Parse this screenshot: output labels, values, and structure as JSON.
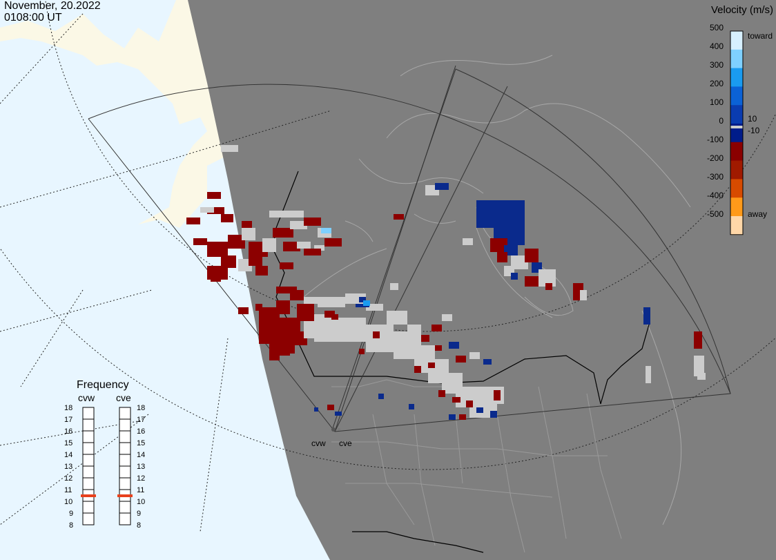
{
  "header": {
    "date": "November, 20.2022",
    "time": "0108:00 UT"
  },
  "velocity_scale": {
    "title": "Velocity (m/s)",
    "ticks": [
      "500",
      "400",
      "300",
      "200",
      "100",
      "0",
      "-100",
      "-200",
      "-300",
      "-400",
      "-500"
    ],
    "labels": {
      "toward": "toward",
      "away": "away",
      "pos_small": "10",
      "neg_small": "-10"
    },
    "colors": [
      "#d7f0ff",
      "#7fd0ff",
      "#1a9bf0",
      "#0b62d6",
      "#0a3cb0",
      "#001c8a",
      "#8a0000",
      "#a01a00",
      "#d74b00",
      "#ff9a1a",
      "#ffd7a8"
    ]
  },
  "frequency": {
    "title": "Frequency",
    "radars": [
      "cvw",
      "cve"
    ],
    "ticks": [
      "18",
      "17",
      "16",
      "15",
      "14",
      "13",
      "12",
      "11",
      "10",
      "9",
      "8"
    ],
    "current_mhz": [
      11,
      11
    ]
  },
  "map": {
    "site_labels": [
      "cvw",
      "cve"
    ],
    "colors": {
      "night": "#7f7f7f",
      "ocean_day": "#e8f6ff",
      "land_day": "#fbf8e6",
      "coast_line": "#a8a8a8",
      "border_line": "#000000",
      "positive": "#0a2a8c",
      "negative": "#8c0000",
      "ground_scatter": "#cccccc"
    }
  }
}
